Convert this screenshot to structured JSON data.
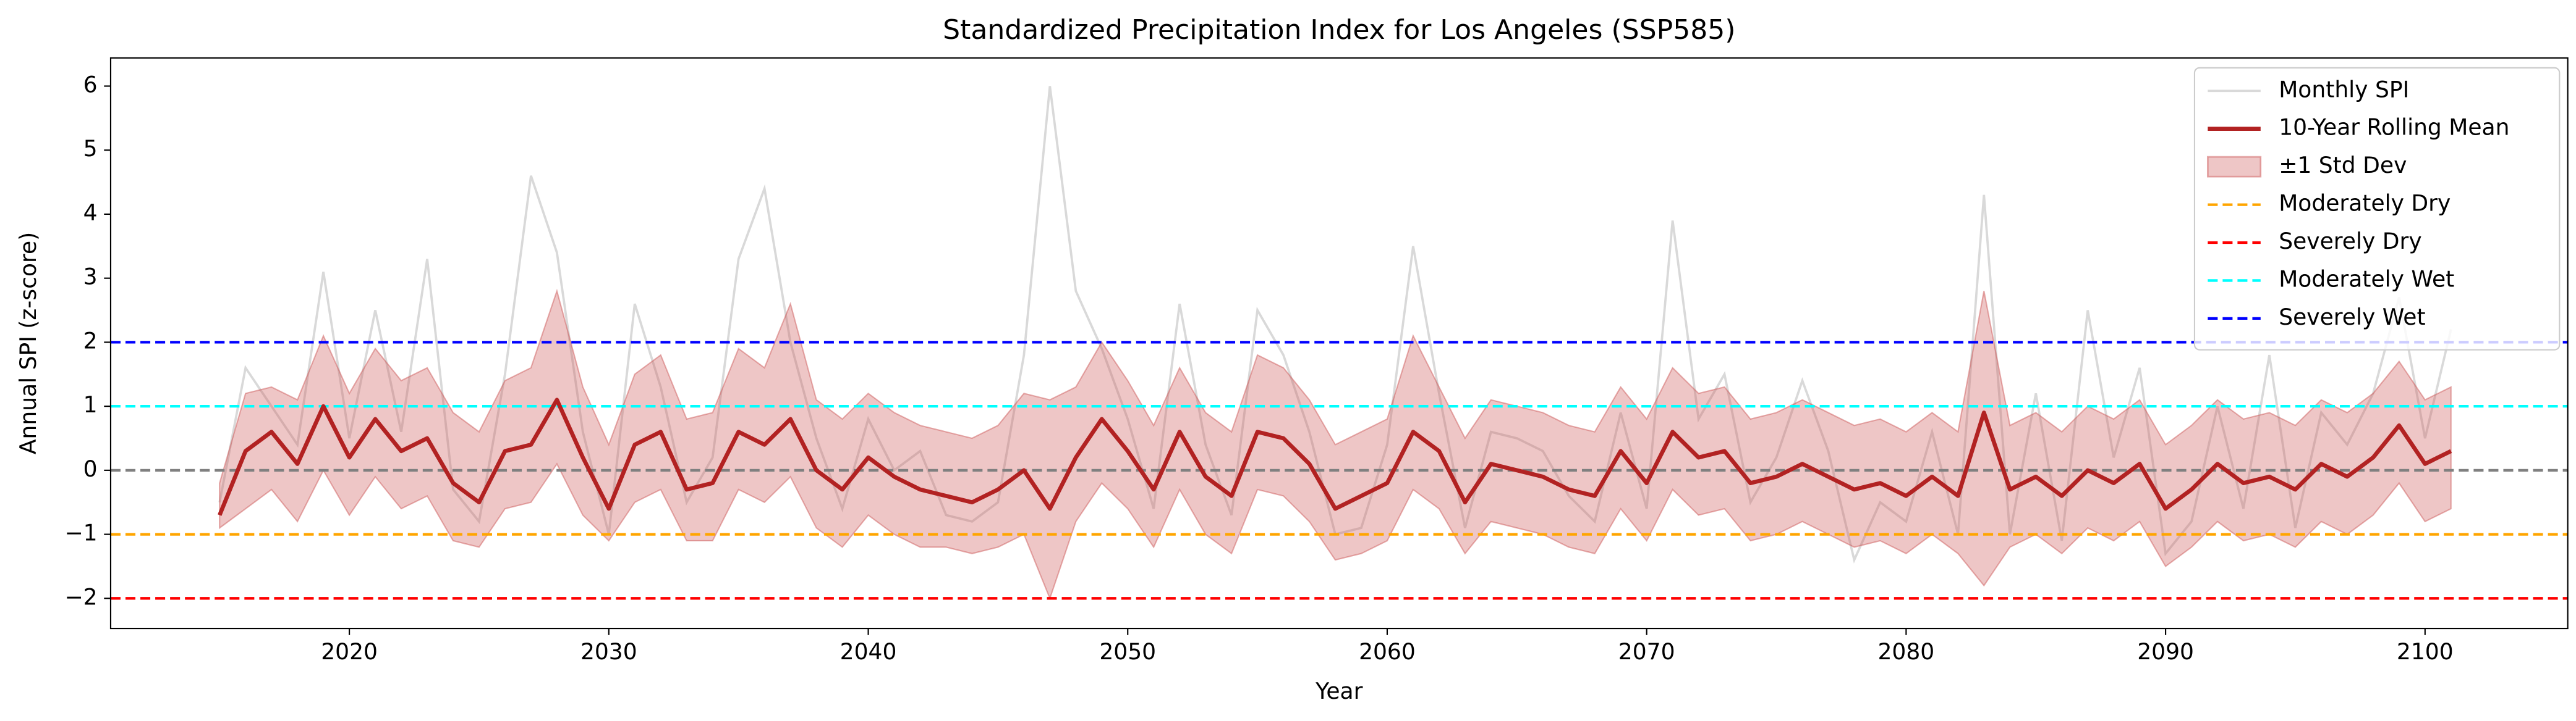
{
  "chart_data": {
    "type": "line",
    "title": "Standardized Precipitation Index for Los Angeles (SSP585)",
    "xlabel": "Year",
    "ylabel": "Annual SPI (z-score)",
    "x": [
      2015,
      2016,
      2017,
      2018,
      2019,
      2020,
      2021,
      2022,
      2023,
      2024,
      2025,
      2026,
      2027,
      2028,
      2029,
      2030,
      2031,
      2032,
      2033,
      2034,
      2035,
      2036,
      2037,
      2038,
      2039,
      2040,
      2041,
      2042,
      2043,
      2044,
      2045,
      2046,
      2047,
      2048,
      2049,
      2050,
      2051,
      2052,
      2053,
      2054,
      2055,
      2056,
      2057,
      2058,
      2059,
      2060,
      2061,
      2062,
      2063,
      2064,
      2065,
      2066,
      2067,
      2068,
      2069,
      2070,
      2071,
      2072,
      2073,
      2074,
      2075,
      2076,
      2077,
      2078,
      2079,
      2080,
      2081,
      2082,
      2083,
      2084,
      2085,
      2086,
      2087,
      2088,
      2089,
      2090,
      2091,
      2092,
      2093,
      2094,
      2095,
      2096,
      2097,
      2098,
      2099,
      2100,
      2101
    ],
    "series": [
      {
        "name": "Monthly SPI",
        "color": "#d9d9d9",
        "values": [
          -0.5,
          1.6,
          1.0,
          0.4,
          3.1,
          0.5,
          2.5,
          0.6,
          3.3,
          -0.3,
          -0.8,
          1.5,
          4.6,
          3.4,
          0.6,
          -1.0,
          2.6,
          1.3,
          -0.5,
          0.2,
          3.3,
          4.4,
          2.0,
          0.5,
          -0.6,
          0.8,
          0.0,
          0.3,
          -0.7,
          -0.8,
          -0.5,
          1.8,
          6.0,
          2.8,
          1.9,
          0.8,
          -0.6,
          2.6,
          0.4,
          -0.7,
          2.5,
          1.8,
          0.6,
          -1.0,
          -0.9,
          0.4,
          3.5,
          1.2,
          -0.9,
          0.6,
          0.5,
          0.3,
          -0.4,
          -0.8,
          0.9,
          -0.6,
          3.9,
          0.8,
          1.5,
          -0.5,
          0.2,
          1.4,
          0.3,
          -1.4,
          -0.5,
          -0.8,
          0.6,
          -1.0,
          4.3,
          -1.0,
          1.2,
          -1.1,
          2.5,
          0.2,
          1.6,
          -1.3,
          -0.8,
          1.0,
          -0.6,
          1.8,
          -0.9,
          0.9,
          0.4,
          1.2,
          2.7,
          0.5,
          2.2
        ]
      },
      {
        "name": "10-Year Rolling Mean",
        "color": "#b22222",
        "values": [
          -0.7,
          0.3,
          0.6,
          0.1,
          1.0,
          0.2,
          0.8,
          0.3,
          0.5,
          -0.2,
          -0.5,
          0.3,
          0.4,
          1.1,
          0.2,
          -0.6,
          0.4,
          0.6,
          -0.3,
          -0.2,
          0.6,
          0.4,
          0.8,
          0.0,
          -0.3,
          0.2,
          -0.1,
          -0.3,
          -0.4,
          -0.5,
          -0.3,
          0.0,
          -0.6,
          0.2,
          0.8,
          0.3,
          -0.3,
          0.6,
          -0.1,
          -0.4,
          0.6,
          0.5,
          0.1,
          -0.6,
          -0.4,
          -0.2,
          0.6,
          0.3,
          -0.5,
          0.1,
          0.0,
          -0.1,
          -0.3,
          -0.4,
          0.3,
          -0.2,
          0.6,
          0.2,
          0.3,
          -0.2,
          -0.1,
          0.1,
          -0.1,
          -0.3,
          -0.2,
          -0.4,
          -0.1,
          -0.4,
          0.9,
          -0.3,
          -0.1,
          -0.4,
          0.0,
          -0.2,
          0.1,
          -0.6,
          -0.3,
          0.1,
          -0.2,
          -0.1,
          -0.3,
          0.1,
          -0.1,
          0.2,
          0.7,
          0.1,
          0.3
        ]
      }
    ],
    "band": {
      "name": "±1 Std Dev",
      "color": "#cd5c5c",
      "lower": [
        -0.9,
        -0.6,
        -0.3,
        -0.8,
        0.0,
        -0.7,
        -0.1,
        -0.6,
        -0.4,
        -1.1,
        -1.2,
        -0.6,
        -0.5,
        0.1,
        -0.7,
        -1.1,
        -0.5,
        -0.3,
        -1.1,
        -1.1,
        -0.3,
        -0.5,
        -0.1,
        -0.9,
        -1.2,
        -0.7,
        -1.0,
        -1.2,
        -1.2,
        -1.3,
        -1.2,
        -1.0,
        -2.0,
        -0.8,
        -0.2,
        -0.6,
        -1.2,
        -0.3,
        -1.0,
        -1.3,
        -0.3,
        -0.4,
        -0.8,
        -1.4,
        -1.3,
        -1.1,
        -0.3,
        -0.6,
        -1.3,
        -0.8,
        -0.9,
        -1.0,
        -1.2,
        -1.3,
        -0.6,
        -1.1,
        -0.3,
        -0.7,
        -0.6,
        -1.1,
        -1.0,
        -0.8,
        -1.0,
        -1.2,
        -1.1,
        -1.3,
        -1.0,
        -1.3,
        -1.8,
        -1.2,
        -1.0,
        -1.3,
        -0.9,
        -1.1,
        -0.8,
        -1.5,
        -1.2,
        -0.8,
        -1.1,
        -1.0,
        -1.2,
        -0.8,
        -1.0,
        -0.7,
        -0.2,
        -0.8,
        -0.6
      ],
      "upper": [
        -0.2,
        1.2,
        1.3,
        1.1,
        2.1,
        1.2,
        1.9,
        1.4,
        1.6,
        0.9,
        0.6,
        1.4,
        1.6,
        2.8,
        1.3,
        0.4,
        1.5,
        1.8,
        0.8,
        0.9,
        1.9,
        1.6,
        2.6,
        1.1,
        0.8,
        1.2,
        0.9,
        0.7,
        0.6,
        0.5,
        0.7,
        1.2,
        1.1,
        1.3,
        2.0,
        1.4,
        0.7,
        1.6,
        0.9,
        0.6,
        1.8,
        1.6,
        1.1,
        0.4,
        0.6,
        0.8,
        2.1,
        1.3,
        0.5,
        1.1,
        1.0,
        0.9,
        0.7,
        0.6,
        1.3,
        0.8,
        1.6,
        1.2,
        1.3,
        0.8,
        0.9,
        1.1,
        0.9,
        0.7,
        0.8,
        0.6,
        0.9,
        0.6,
        2.8,
        0.7,
        0.9,
        0.6,
        1.0,
        0.8,
        1.1,
        0.4,
        0.7,
        1.1,
        0.8,
        0.9,
        0.7,
        1.1,
        0.9,
        1.2,
        1.7,
        1.1,
        1.3
      ]
    },
    "reference_lines": [
      {
        "value": 0,
        "color": "#808080"
      },
      {
        "name": "Moderately Dry",
        "value": -1,
        "color": "#ffa500"
      },
      {
        "name": "Severely Dry",
        "value": -2,
        "color": "#ff0000"
      },
      {
        "name": "Moderately Wet",
        "value": 1,
        "color": "#00ffff"
      },
      {
        "name": "Severely Wet",
        "value": 2,
        "color": "#0000ff"
      }
    ],
    "xlim": [
      2010.8,
      2105.5
    ],
    "ylim": [
      -2.47,
      6.44
    ],
    "xticks": [
      2020,
      2030,
      2040,
      2050,
      2060,
      2070,
      2080,
      2090,
      2100
    ],
    "yticks": [
      {
        "value": -2,
        "label": "−2"
      },
      {
        "value": -1,
        "label": "−1"
      },
      0,
      1,
      2,
      3,
      4,
      5,
      6
    ],
    "legend": "upper right"
  }
}
